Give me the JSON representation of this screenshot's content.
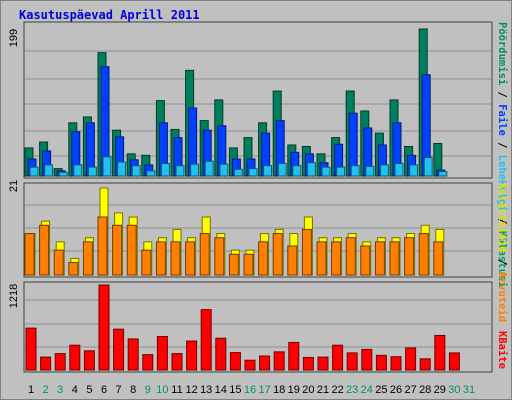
{
  "title": "Kasutuspäevad Aprill 2011",
  "colors": {
    "visits": "#007f5f",
    "pages": "#0040ff",
    "files": "#20c0f0",
    "hits": "#ffff00",
    "sites": "#ff8000",
    "kbytes": "#ff0000",
    "weekday_label": "#000000",
    "weekend_label": "#00906f"
  },
  "labels": {
    "top_series": [
      "Pöördumisi",
      "Faile",
      "Lehekülgi",
      "Külastusi"
    ],
    "top_colors": [
      "#009060",
      "#0040ff",
      "#20c0f0",
      "#00a060"
    ],
    "mid_series": [
      "Külastajaid",
      "Arvuteid"
    ],
    "mid_colors": [
      "#e0e000",
      "#ff8000"
    ],
    "bottom_series": [
      "KBaite"
    ],
    "bottom_colors": [
      "#ff0000"
    ]
  },
  "chart_data": [
    {
      "type": "bar",
      "panel": "top",
      "ymax_label": "199",
      "ylim": [
        0,
        199
      ],
      "grid": true,
      "categories": [
        "1",
        "2",
        "3",
        "4",
        "5",
        "6",
        "7",
        "8",
        "9",
        "10",
        "11",
        "12",
        "13",
        "14",
        "15",
        "16",
        "17",
        "18",
        "19",
        "20",
        "21",
        "22",
        "23",
        "24",
        "25",
        "26",
        "27",
        "28",
        "29",
        "30",
        "31"
      ],
      "series": [
        {
          "name": "Pöördumisi",
          "values": [
            38,
            46,
            10,
            72,
            80,
            167,
            62,
            30,
            28,
            102,
            63,
            143,
            75,
            103,
            38,
            52,
            72,
            115,
            42,
            40,
            30,
            52,
            115,
            88,
            58,
            103,
            40,
            199,
            44,
            0,
            0
          ]
        },
        {
          "name": "Faile",
          "values": [
            23,
            34,
            7,
            60,
            72,
            148,
            53,
            22,
            15,
            72,
            52,
            92,
            62,
            68,
            23,
            23,
            58,
            75,
            32,
            30,
            18,
            43,
            85,
            65,
            42,
            72,
            28,
            137,
            8,
            0,
            0
          ]
        },
        {
          "name": "Lehekülgi",
          "values": [
            12,
            15,
            5,
            15,
            12,
            26,
            19,
            14,
            7,
            17,
            14,
            16,
            20,
            16,
            9,
            10,
            14,
            17,
            14,
            18,
            12,
            12,
            14,
            13,
            15,
            17,
            15,
            25,
            6,
            0,
            0
          ]
        }
      ]
    },
    {
      "type": "bar",
      "panel": "middle",
      "ymax_label": "21",
      "ylim": [
        0,
        21
      ],
      "grid": true,
      "categories": [
        "1",
        "2",
        "3",
        "4",
        "5",
        "6",
        "7",
        "8",
        "9",
        "10",
        "11",
        "12",
        "13",
        "14",
        "15",
        "16",
        "17",
        "18",
        "19",
        "20",
        "21",
        "22",
        "23",
        "24",
        "25",
        "26",
        "27",
        "28",
        "29",
        "30",
        "31"
      ],
      "series": [
        {
          "name": "Külastajaid",
          "values": [
            10,
            13,
            8,
            4,
            9,
            21,
            15,
            14,
            8,
            9,
            11,
            9,
            14,
            10,
            6,
            6,
            10,
            11,
            10,
            14,
            9,
            9,
            10,
            8,
            9,
            9,
            10,
            12,
            11,
            0,
            0
          ]
        },
        {
          "name": "Arvuteid",
          "values": [
            10,
            12,
            6,
            3,
            8,
            14,
            12,
            12,
            6,
            8,
            8,
            8,
            10,
            9,
            5,
            5,
            8,
            10,
            7,
            11,
            8,
            8,
            9,
            7,
            8,
            8,
            9,
            10,
            8,
            0,
            0
          ]
        }
      ]
    },
    {
      "type": "bar",
      "panel": "bottom",
      "ymax_label": "1218",
      "ylim": [
        0,
        1218
      ],
      "grid": true,
      "categories": [
        "1",
        "2",
        "3",
        "4",
        "5",
        "6",
        "7",
        "8",
        "9",
        "10",
        "11",
        "12",
        "13",
        "14",
        "15",
        "16",
        "17",
        "18",
        "19",
        "20",
        "21",
        "22",
        "23",
        "24",
        "25",
        "26",
        "27",
        "28",
        "29",
        "30",
        "31"
      ],
      "series": [
        {
          "name": "KBaite",
          "values": [
            600,
            185,
            235,
            355,
            275,
            1218,
            585,
            445,
            220,
            480,
            235,
            415,
            865,
            455,
            250,
            140,
            200,
            260,
            395,
            180,
            185,
            355,
            245,
            295,
            210,
            190,
            315,
            160,
            495,
            245,
            0
          ]
        }
      ]
    }
  ],
  "x_labels": [
    "1",
    "2",
    "3",
    "4",
    "5",
    "6",
    "7",
    "8",
    "9",
    "10",
    "11",
    "12",
    "13",
    "14",
    "15",
    "16",
    "17",
    "18",
    "19",
    "20",
    "21",
    "22",
    "23",
    "24",
    "25",
    "26",
    "27",
    "28",
    "29",
    "30",
    "31"
  ],
  "weekend_days": [
    2,
    3,
    9,
    10,
    16,
    17,
    23,
    24,
    30,
    31
  ]
}
